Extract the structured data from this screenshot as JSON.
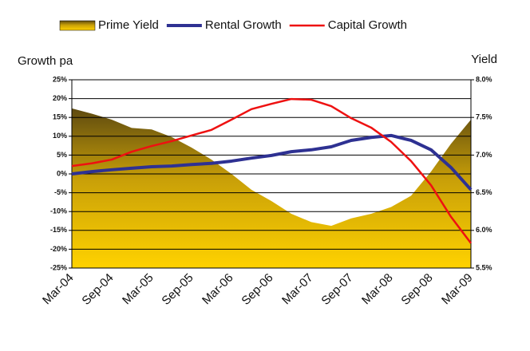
{
  "chart_data": {
    "type": "line",
    "y_label": "Growth pa",
    "y2_label": "Yield",
    "categories": [
      "Mar-04",
      null,
      "Sep-04",
      null,
      "Mar-05",
      null,
      "Sep-05",
      null,
      "Mar-06",
      null,
      "Sep-06",
      null,
      "Mar-07",
      null,
      "Sep-07",
      null,
      "Mar-08",
      null,
      "Sep-08",
      null,
      "Mar-09"
    ],
    "series": [
      {
        "name": "Prime Yield",
        "type": "area",
        "axis": "y2",
        "color": "#d4a800",
        "values": [
          7.62,
          7.55,
          7.47,
          7.36,
          7.34,
          7.24,
          7.1,
          6.94,
          6.75,
          6.54,
          6.39,
          6.22,
          6.11,
          6.06,
          6.16,
          6.22,
          6.31,
          6.46,
          6.78,
          7.15,
          7.47
        ]
      },
      {
        "name": "Rental Growth",
        "type": "line",
        "axis": "y",
        "color": "#2e3192",
        "values": [
          0,
          0.6,
          1.1,
          1.5,
          1.9,
          2.1,
          2.5,
          2.8,
          3.4,
          4.2,
          4.9,
          5.9,
          6.4,
          7.2,
          8.9,
          9.7,
          10.2,
          8.9,
          6.4,
          1.7,
          -4.2
        ]
      },
      {
        "name": "Capital Growth",
        "type": "line",
        "axis": "y",
        "color": "#ee1111",
        "values": [
          2.1,
          2.8,
          3.8,
          5.9,
          7.4,
          8.7,
          10.2,
          11.7,
          14.4,
          17.2,
          18.6,
          19.9,
          19.7,
          18.0,
          14.8,
          12.3,
          8.5,
          3.4,
          -3.0,
          -11.4,
          -18.4
        ]
      }
    ],
    "ylim": [
      -25,
      25
    ],
    "yticks": [
      {
        "value": 25,
        "label": "25%"
      },
      {
        "value": 20,
        "label": "20%"
      },
      {
        "value": 15,
        "label": "15%"
      },
      {
        "value": 10,
        "label": "10%"
      },
      {
        "value": 5,
        "label": "5%"
      },
      {
        "value": 0,
        "label": "0%"
      },
      {
        "value": -5,
        "label": "-5%"
      },
      {
        "value": -10,
        "label": "-10%"
      },
      {
        "value": -15,
        "label": "-15%"
      },
      {
        "value": -20,
        "label": "-20%"
      },
      {
        "value": -25,
        "label": "-25%"
      }
    ],
    "y2lim": [
      5.5,
      8.0
    ],
    "y2ticks": [
      {
        "value": 8.0,
        "label": "8.0%"
      },
      {
        "value": 7.5,
        "label": "7.5%"
      },
      {
        "value": 7.0,
        "label": "7.0%"
      },
      {
        "value": 6.5,
        "label": "6.5%"
      },
      {
        "value": 6.0,
        "label": "6.0%"
      },
      {
        "value": 5.5,
        "label": "5.5%"
      }
    ],
    "grid": true
  }
}
